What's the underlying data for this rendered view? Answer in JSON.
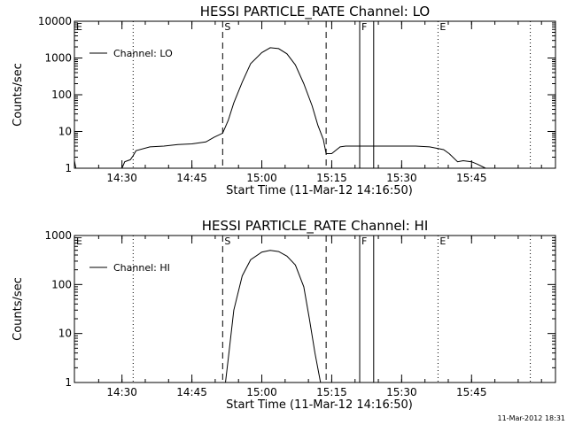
{
  "timestamp": "11-Mar-2012 18:31",
  "chart_data": [
    {
      "type": "line",
      "title": "HESSI PARTICLE_RATE Channel: LO",
      "xlabel": "Start Time (11-Mar-12 14:16:50)",
      "ylabel": "Counts/sec",
      "yscale": "log",
      "ylim": [
        1,
        10000
      ],
      "xlim": [
        14.33,
        16.05
      ],
      "x_ticks": [
        14.5,
        14.75,
        15.0,
        15.25,
        15.5,
        15.75
      ],
      "x_tick_labels": [
        "14:30",
        "14:45",
        "15:00",
        "15:15",
        "15:30",
        "15:45"
      ],
      "y_ticks": [
        1,
        10,
        100,
        1000,
        10000
      ],
      "y_tick_labels": [
        "1",
        "10",
        "100",
        "1000",
        "10000"
      ],
      "legend": {
        "label": "Channel: LO",
        "placement": "top-left"
      },
      "markers": [
        {
          "label": "E",
          "x": 14.33,
          "style": "dotted"
        },
        {
          "label": "",
          "x": 14.54,
          "style": "dotted"
        },
        {
          "label": "S",
          "x": 14.86,
          "style": "dashed"
        },
        {
          "label": "",
          "x": 15.23,
          "style": "dashed"
        },
        {
          "label": "F",
          "x": 15.35,
          "style": "solid"
        },
        {
          "label": "",
          "x": 15.4,
          "style": "solid"
        },
        {
          "label": "E",
          "x": 15.63,
          "style": "dotted"
        },
        {
          "label": "",
          "x": 15.96,
          "style": "dotted"
        }
      ],
      "series": [
        {
          "x": [
            14.33,
            14.335,
            14.34,
            14.5,
            14.51,
            14.53,
            14.54,
            14.55,
            14.6,
            14.65,
            14.7,
            14.75,
            14.8,
            14.83,
            14.86,
            14.88,
            14.9,
            14.93,
            14.96,
            15.0,
            15.03,
            15.06,
            15.09,
            15.12,
            15.15,
            15.18,
            15.2,
            15.22,
            15.23,
            15.25,
            15.28,
            15.3,
            15.35,
            15.4,
            15.45,
            15.5,
            15.55,
            15.6,
            15.65,
            15.67,
            15.7,
            15.72,
            15.75,
            15.77,
            15.8
          ],
          "y": [
            1.6,
            1,
            1,
            1,
            1.5,
            1.7,
            2.2,
            3,
            3.8,
            4,
            4.4,
            4.6,
            5.2,
            7,
            9,
            20,
            60,
            220,
            700,
            1400,
            1900,
            1800,
            1300,
            650,
            200,
            50,
            15,
            6,
            2.5,
            2.5,
            3.8,
            4,
            4,
            4,
            4,
            4,
            4,
            3.8,
            3.2,
            2.5,
            1.5,
            1.6,
            1.5,
            1.3,
            1
          ]
        }
      ]
    },
    {
      "type": "line",
      "title": "HESSI PARTICLE_RATE Channel: HI",
      "xlabel": "Start Time (11-Mar-12 14:16:50)",
      "ylabel": "Counts/sec",
      "yscale": "log",
      "ylim": [
        1,
        1000
      ],
      "xlim": [
        14.33,
        16.05
      ],
      "x_ticks": [
        14.5,
        14.75,
        15.0,
        15.25,
        15.5,
        15.75
      ],
      "x_tick_labels": [
        "14:30",
        "14:45",
        "15:00",
        "15:15",
        "15:30",
        "15:45"
      ],
      "y_ticks": [
        1,
        10,
        100,
        1000
      ],
      "y_tick_labels": [
        "1",
        "10",
        "100",
        "1000"
      ],
      "legend": {
        "label": "Channel: HI",
        "placement": "top-left"
      },
      "markers": [
        {
          "label": "E",
          "x": 14.33,
          "style": "dotted"
        },
        {
          "label": "",
          "x": 14.54,
          "style": "dotted"
        },
        {
          "label": "S",
          "x": 14.86,
          "style": "dashed"
        },
        {
          "label": "",
          "x": 15.23,
          "style": "dashed"
        },
        {
          "label": "F",
          "x": 15.35,
          "style": "solid"
        },
        {
          "label": "",
          "x": 15.4,
          "style": "solid"
        },
        {
          "label": "E",
          "x": 15.63,
          "style": "dotted"
        },
        {
          "label": "",
          "x": 15.96,
          "style": "dotted"
        }
      ],
      "series": [
        {
          "x": [
            14.87,
            14.88,
            14.9,
            14.93,
            14.96,
            15.0,
            15.03,
            15.06,
            15.09,
            15.12,
            15.15,
            15.17,
            15.19,
            15.21
          ],
          "y": [
            1,
            3,
            30,
            150,
            320,
            460,
            500,
            470,
            380,
            250,
            90,
            20,
            4,
            1
          ]
        }
      ]
    }
  ]
}
